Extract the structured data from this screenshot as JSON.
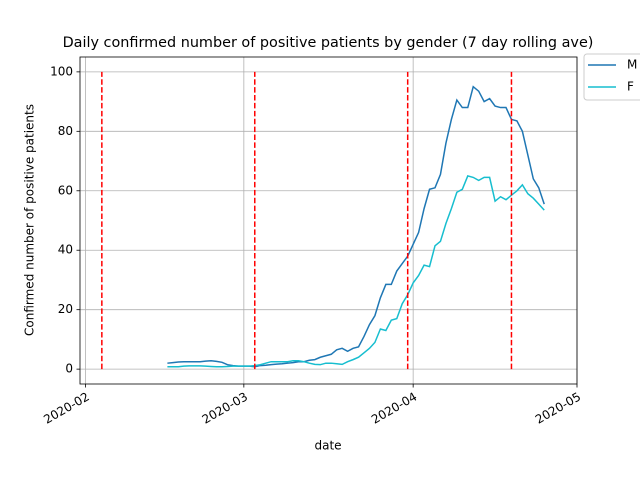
{
  "chart_data": {
    "type": "line",
    "title": "Daily confirmed number of positive patients by gender (7 day rolling ave)",
    "x_label": "date",
    "y_label": "Confirmed number of positive patients",
    "x": [
      "2020-02-16",
      "2020-02-17",
      "2020-02-18",
      "2020-02-19",
      "2020-02-20",
      "2020-02-21",
      "2020-02-22",
      "2020-02-23",
      "2020-02-24",
      "2020-02-25",
      "2020-02-26",
      "2020-02-27",
      "2020-02-28",
      "2020-02-29",
      "2020-03-01",
      "2020-03-02",
      "2020-03-03",
      "2020-03-04",
      "2020-03-05",
      "2020-03-06",
      "2020-03-07",
      "2020-03-08",
      "2020-03-09",
      "2020-03-10",
      "2020-03-11",
      "2020-03-12",
      "2020-03-13",
      "2020-03-14",
      "2020-03-15",
      "2020-03-16",
      "2020-03-17",
      "2020-03-18",
      "2020-03-19",
      "2020-03-20",
      "2020-03-21",
      "2020-03-22",
      "2020-03-23",
      "2020-03-24",
      "2020-03-25",
      "2020-03-26",
      "2020-03-27",
      "2020-03-28",
      "2020-03-29",
      "2020-03-30",
      "2020-03-31",
      "2020-04-01",
      "2020-04-02",
      "2020-04-03",
      "2020-04-04",
      "2020-04-05",
      "2020-04-06",
      "2020-04-07",
      "2020-04-08",
      "2020-04-09",
      "2020-04-10",
      "2020-04-11",
      "2020-04-12",
      "2020-04-13",
      "2020-04-14",
      "2020-04-15",
      "2020-04-16",
      "2020-04-17",
      "2020-04-18",
      "2020-04-19",
      "2020-04-20",
      "2020-04-21",
      "2020-04-22",
      "2020-04-23",
      "2020-04-24",
      "2020-04-25"
    ],
    "series": [
      {
        "name": "M",
        "color": "#1f77b4",
        "values": [
          2.0,
          2.2,
          2.4,
          2.5,
          2.5,
          2.5,
          2.5,
          2.7,
          2.8,
          2.6,
          2.3,
          1.5,
          1.2,
          1.0,
          1.0,
          1.0,
          0.8,
          1.2,
          1.3,
          1.5,
          1.7,
          1.8,
          2.0,
          2.2,
          2.5,
          2.5,
          3.0,
          3.2,
          4.0,
          4.5,
          5.0,
          6.5,
          7.0,
          6.0,
          7.0,
          7.5,
          11,
          15,
          18,
          24,
          28.5,
          28.5,
          33,
          35.5,
          38,
          42,
          46,
          54,
          60.5,
          61,
          65.5,
          76,
          84,
          90.5,
          88,
          88,
          95,
          93.5,
          90,
          91,
          88.5,
          88,
          88,
          84,
          83.5,
          80,
          72,
          64,
          61,
          55.5
        ]
      },
      {
        "name": "F",
        "color": "#17becf",
        "values": [
          0.8,
          0.8,
          0.8,
          1.0,
          1.1,
          1.1,
          1.1,
          1.0,
          0.9,
          0.8,
          0.8,
          0.9,
          1.0,
          1.0,
          1.0,
          1.0,
          1.2,
          1.5,
          2.0,
          2.5,
          2.5,
          2.5,
          2.5,
          2.8,
          2.8,
          2.5,
          2.0,
          1.6,
          1.5,
          2.0,
          2.0,
          1.8,
          1.6,
          2.5,
          3.2,
          4.0,
          5.5,
          7,
          9,
          13.5,
          13,
          16.5,
          17,
          22,
          25,
          29,
          31.5,
          35,
          34.5,
          41.5,
          43,
          49,
          54,
          59.5,
          60.5,
          65,
          64.5,
          63.5,
          64.5,
          64.5,
          56.5,
          58,
          57,
          58.5,
          60,
          62,
          59,
          57.5,
          55.5,
          53.5
        ]
      }
    ],
    "vlines": {
      "x": [
        "2020-02-04",
        "2020-03-03",
        "2020-03-31",
        "2020-04-19"
      ],
      "ymin": 0,
      "ymax": 100,
      "color": "#ff0000"
    },
    "xlim": [
      "2020-01-31",
      "2020-05-01"
    ],
    "xticks": [
      {
        "value": "2020-02-01",
        "label": "2020-02"
      },
      {
        "value": "2020-03-01",
        "label": "2020-03"
      },
      {
        "value": "2020-04-01",
        "label": "2020-04"
      },
      {
        "value": "2020-05-01",
        "label": "2020-05"
      }
    ],
    "ylim": [
      -5,
      105
    ],
    "yticks": [
      0,
      20,
      40,
      60,
      80,
      100
    ],
    "grid": true,
    "legend": "upper right outside"
  }
}
